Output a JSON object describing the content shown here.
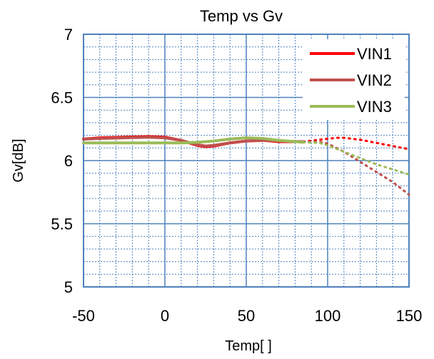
{
  "chart_data": {
    "type": "line",
    "title": "Temp vs Gv",
    "xlabel": "Temp[    ]",
    "ylabel": "Gv[dB]",
    "xlim": [
      -50,
      150
    ],
    "ylim": [
      5,
      7
    ],
    "x_ticks": [
      "-50",
      "0",
      "50",
      "100",
      "150"
    ],
    "y_ticks": [
      "5",
      "5.5",
      "6",
      "6.5",
      "7"
    ],
    "grid": true,
    "legend_position": "top-right",
    "series": [
      {
        "name": "VIN1",
        "color": "#ff0000",
        "measured": [
          [
            -50,
            6.17
          ],
          [
            -40,
            6.18
          ],
          [
            -25,
            6.185
          ],
          [
            -10,
            6.19
          ],
          [
            0,
            6.185
          ],
          [
            10,
            6.16
          ],
          [
            20,
            6.12
          ],
          [
            25,
            6.11
          ],
          [
            30,
            6.115
          ],
          [
            40,
            6.14
          ],
          [
            50,
            6.155
          ],
          [
            60,
            6.16
          ],
          [
            70,
            6.15
          ],
          [
            85,
            6.15
          ]
        ],
        "projected": [
          [
            85,
            6.15
          ],
          [
            95,
            6.165
          ],
          [
            105,
            6.18
          ],
          [
            110,
            6.18
          ],
          [
            120,
            6.165
          ],
          [
            130,
            6.14
          ],
          [
            140,
            6.115
          ],
          [
            150,
            6.09
          ]
        ]
      },
      {
        "name": "VIN2",
        "color": "#c0504d",
        "measured": [
          [
            -50,
            6.17
          ],
          [
            -40,
            6.175
          ],
          [
            -25,
            6.18
          ],
          [
            -10,
            6.185
          ],
          [
            0,
            6.18
          ],
          [
            10,
            6.16
          ],
          [
            20,
            6.125
          ],
          [
            25,
            6.115
          ],
          [
            30,
            6.12
          ],
          [
            40,
            6.14
          ],
          [
            50,
            6.155
          ],
          [
            60,
            6.16
          ],
          [
            70,
            6.155
          ],
          [
            85,
            6.15
          ]
        ],
        "projected": [
          [
            85,
            6.15
          ],
          [
            95,
            6.15
          ],
          [
            100,
            6.135
          ],
          [
            110,
            6.07
          ],
          [
            120,
            5.99
          ],
          [
            130,
            5.91
          ],
          [
            140,
            5.83
          ],
          [
            150,
            5.73
          ]
        ]
      },
      {
        "name": "VIN3",
        "color": "#9bbb59",
        "measured": [
          [
            -50,
            6.14
          ],
          [
            -40,
            6.14
          ],
          [
            -25,
            6.14
          ],
          [
            -10,
            6.14
          ],
          [
            0,
            6.14
          ],
          [
            10,
            6.14
          ],
          [
            20,
            6.145
          ],
          [
            30,
            6.155
          ],
          [
            40,
            6.17
          ],
          [
            50,
            6.18
          ],
          [
            60,
            6.175
          ],
          [
            70,
            6.16
          ],
          [
            85,
            6.145
          ]
        ],
        "projected": [
          [
            85,
            6.145
          ],
          [
            95,
            6.14
          ],
          [
            100,
            6.12
          ],
          [
            110,
            6.07
          ],
          [
            120,
            6.02
          ],
          [
            130,
            5.97
          ],
          [
            140,
            5.93
          ],
          [
            150,
            5.89
          ]
        ]
      }
    ]
  }
}
